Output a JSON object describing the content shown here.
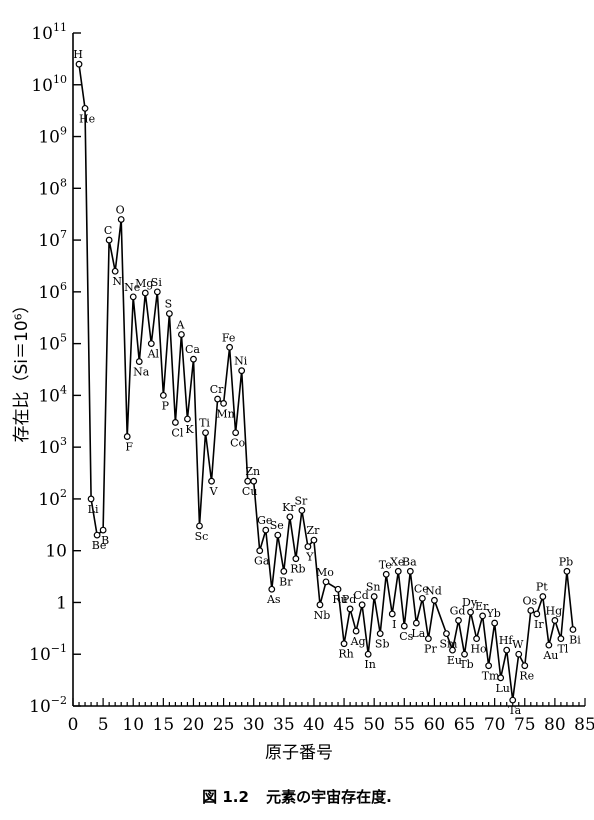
{
  "chart_data": {
    "type": "line",
    "ylabel": "存在比（Si＝10⁶）",
    "xlabel": "原子番号",
    "yscale": "log",
    "ylim": [
      0.01,
      100000000000
    ],
    "xlim": [
      0,
      85
    ],
    "y_tick_labels": [
      {
        "value": 0.01,
        "base": "10",
        "exp": "−2"
      },
      {
        "value": 0.1,
        "base": "10",
        "exp": "−1"
      },
      {
        "value": 1,
        "base": "1",
        "exp": ""
      },
      {
        "value": 10,
        "base": "10",
        "exp": ""
      },
      {
        "value": 100,
        "base": "10",
        "exp": "2"
      },
      {
        "value": 1000,
        "base": "10",
        "exp": "3"
      },
      {
        "value": 10000,
        "base": "10",
        "exp": "4"
      },
      {
        "value": 100000,
        "base": "10",
        "exp": "5"
      },
      {
        "value": 1000000,
        "base": "10",
        "exp": "6"
      },
      {
        "value": 10000000,
        "base": "10",
        "exp": "7"
      },
      {
        "value": 100000000,
        "base": "10",
        "exp": "8"
      },
      {
        "value": 1000000000,
        "base": "10",
        "exp": "9"
      },
      {
        "value": 10000000000,
        "base": "10",
        "exp": "10"
      },
      {
        "value": 100000000000,
        "base": "10",
        "exp": "11"
      }
    ],
    "x_ticks": [
      0,
      5,
      10,
      15,
      20,
      25,
      30,
      35,
      40,
      45,
      50,
      55,
      60,
      65,
      70,
      75,
      80,
      85
    ],
    "series": [
      {
        "x": [
          1,
          2,
          3,
          4,
          5,
          6,
          7,
          8,
          9,
          10,
          11,
          12,
          13,
          14,
          15,
          16,
          17,
          18,
          19,
          20,
          21,
          22,
          23,
          24,
          25,
          26,
          27,
          28,
          29,
          30,
          31,
          32,
          33,
          34,
          35,
          36,
          37,
          38,
          39,
          40,
          41,
          42,
          44,
          45,
          46,
          47,
          48,
          49,
          50,
          51,
          52,
          53,
          54,
          55,
          56,
          57,
          58,
          59,
          60,
          62,
          63,
          64,
          65,
          66,
          67,
          68,
          69,
          70,
          71,
          72,
          73,
          74,
          75,
          76,
          77,
          78,
          79,
          80,
          81,
          82,
          83
        ],
        "y": [
          25000000000,
          3500000000,
          100,
          20,
          25,
          10000000,
          2500000,
          25000000,
          1600,
          800000,
          45000,
          950000,
          100000,
          1000000,
          10000,
          380000,
          3000,
          150000,
          3500,
          50000,
          30,
          1900,
          220,
          8500,
          7000,
          85000,
          1900,
          30000,
          220,
          220,
          10,
          25,
          1.8,
          20,
          4,
          45,
          7,
          60,
          12,
          16,
          0.9,
          2.5,
          1.8,
          0.16,
          0.75,
          0.28,
          0.9,
          0.1,
          1.3,
          0.25,
          3.5,
          0.6,
          4,
          0.35,
          4,
          0.4,
          1.2,
          0.2,
          1.1,
          0.25,
          0.12,
          0.45,
          0.1,
          0.65,
          0.2,
          0.55,
          0.06,
          0.4,
          0.035,
          0.12,
          0.013,
          0.1,
          0.06,
          0.7,
          0.6,
          1.3,
          0.15,
          0.45,
          0.2,
          4,
          0.3
        ]
      }
    ],
    "element_labels": [
      {
        "text": "H",
        "x": 1,
        "y": 25000000000
      },
      {
        "text": "He",
        "x": 2,
        "y": 3500000000
      },
      {
        "text": "Li",
        "x": 3,
        "y": 100
      },
      {
        "text": "Be",
        "x": 4,
        "y": 20
      },
      {
        "text": "B",
        "x": 5,
        "y": 25
      },
      {
        "text": "C",
        "x": 6,
        "y": 10000000
      },
      {
        "text": "N",
        "x": 7,
        "y": 2500000
      },
      {
        "text": "O",
        "x": 8,
        "y": 25000000
      },
      {
        "text": "F",
        "x": 9,
        "y": 1600
      },
      {
        "text": "Ne",
        "x": 10,
        "y": 800000
      },
      {
        "text": "Na",
        "x": 11,
        "y": 45000
      },
      {
        "text": "Mg",
        "x": 12,
        "y": 950000
      },
      {
        "text": "Al",
        "x": 13,
        "y": 100000
      },
      {
        "text": "Si",
        "x": 14,
        "y": 1000000
      },
      {
        "text": "P",
        "x": 15,
        "y": 10000
      },
      {
        "text": "S",
        "x": 16,
        "y": 380000
      },
      {
        "text": "Cl",
        "x": 17,
        "y": 3000
      },
      {
        "text": "A",
        "x": 18,
        "y": 150000
      },
      {
        "text": "K",
        "x": 19,
        "y": 3500
      },
      {
        "text": "Ca",
        "x": 20,
        "y": 50000
      },
      {
        "text": "Sc",
        "x": 21,
        "y": 30
      },
      {
        "text": "Ti",
        "x": 22,
        "y": 1900
      },
      {
        "text": "V",
        "x": 23,
        "y": 220
      },
      {
        "text": "Cr",
        "x": 24,
        "y": 8500
      },
      {
        "text": "Mn",
        "x": 25,
        "y": 7000
      },
      {
        "text": "Fe",
        "x": 26,
        "y": 85000
      },
      {
        "text": "Co",
        "x": 27,
        "y": 1900
      },
      {
        "text": "Ni",
        "x": 28,
        "y": 30000
      },
      {
        "text": "Cu",
        "x": 29,
        "y": 220
      },
      {
        "text": "Zn",
        "x": 30,
        "y": 220
      },
      {
        "text": "Ga",
        "x": 31,
        "y": 10
      },
      {
        "text": "Ge",
        "x": 32,
        "y": 25
      },
      {
        "text": "As",
        "x": 33,
        "y": 1.8
      },
      {
        "text": "Se",
        "x": 34,
        "y": 20
      },
      {
        "text": "Br",
        "x": 35,
        "y": 4
      },
      {
        "text": "Kr",
        "x": 36,
        "y": 45
      },
      {
        "text": "Rb",
        "x": 37,
        "y": 7
      },
      {
        "text": "Sr",
        "x": 38,
        "y": 60
      },
      {
        "text": "Y",
        "x": 39,
        "y": 12
      },
      {
        "text": "Zr",
        "x": 40,
        "y": 16
      },
      {
        "text": "Nb",
        "x": 41,
        "y": 0.9
      },
      {
        "text": "Mo",
        "x": 42,
        "y": 2.5
      },
      {
        "text": "Ru",
        "x": 44,
        "y": 1.8
      },
      {
        "text": "Rh",
        "x": 45,
        "y": 0.16
      },
      {
        "text": "Pd",
        "x": 46,
        "y": 0.75
      },
      {
        "text": "Ag",
        "x": 47,
        "y": 0.28
      },
      {
        "text": "Cd",
        "x": 48,
        "y": 0.9
      },
      {
        "text": "In",
        "x": 49,
        "y": 0.1
      },
      {
        "text": "Sn",
        "x": 50,
        "y": 1.3
      },
      {
        "text": "Sb",
        "x": 51,
        "y": 0.25
      },
      {
        "text": "Te",
        "x": 52,
        "y": 3.5
      },
      {
        "text": "I",
        "x": 53,
        "y": 0.6
      },
      {
        "text": "Xe",
        "x": 54,
        "y": 4
      },
      {
        "text": "Cs",
        "x": 55,
        "y": 0.35
      },
      {
        "text": "Ba",
        "x": 56,
        "y": 4
      },
      {
        "text": "La",
        "x": 57,
        "y": 0.4
      },
      {
        "text": "Ce",
        "x": 58,
        "y": 1.2
      },
      {
        "text": "Pr",
        "x": 59,
        "y": 0.2
      },
      {
        "text": "Nd",
        "x": 60,
        "y": 1.1
      },
      {
        "text": "Sm",
        "x": 62,
        "y": 0.25
      },
      {
        "text": "Eu",
        "x": 63,
        "y": 0.12
      },
      {
        "text": "Gd",
        "x": 64,
        "y": 0.45
      },
      {
        "text": "Tb",
        "x": 65,
        "y": 0.1
      },
      {
        "text": "Dy",
        "x": 66,
        "y": 0.65
      },
      {
        "text": "Ho",
        "x": 67,
        "y": 0.2
      },
      {
        "text": "Er",
        "x": 68,
        "y": 0.55
      },
      {
        "text": "Tm",
        "x": 69,
        "y": 0.06
      },
      {
        "text": "Yb",
        "x": 70,
        "y": 0.4
      },
      {
        "text": "Lu",
        "x": 71,
        "y": 0.035
      },
      {
        "text": "Hf",
        "x": 72,
        "y": 0.12
      },
      {
        "text": "Ta",
        "x": 73,
        "y": 0.013
      },
      {
        "text": "W",
        "x": 74,
        "y": 0.1
      },
      {
        "text": "Re",
        "x": 75,
        "y": 0.06
      },
      {
        "text": "Os",
        "x": 76,
        "y": 0.7
      },
      {
        "text": "Ir",
        "x": 77,
        "y": 0.6
      },
      {
        "text": "Pt",
        "x": 78,
        "y": 1.3
      },
      {
        "text": "Au",
        "x": 79,
        "y": 0.15
      },
      {
        "text": "Hg",
        "x": 80,
        "y": 0.45
      },
      {
        "text": "Tl",
        "x": 81,
        "y": 0.2
      },
      {
        "text": "Pb",
        "x": 82,
        "y": 4
      },
      {
        "text": "Bi",
        "x": 83,
        "y": 0.3
      }
    ]
  },
  "caption": {
    "number": "図 1.2",
    "text": "元素の宇宙存在度."
  }
}
